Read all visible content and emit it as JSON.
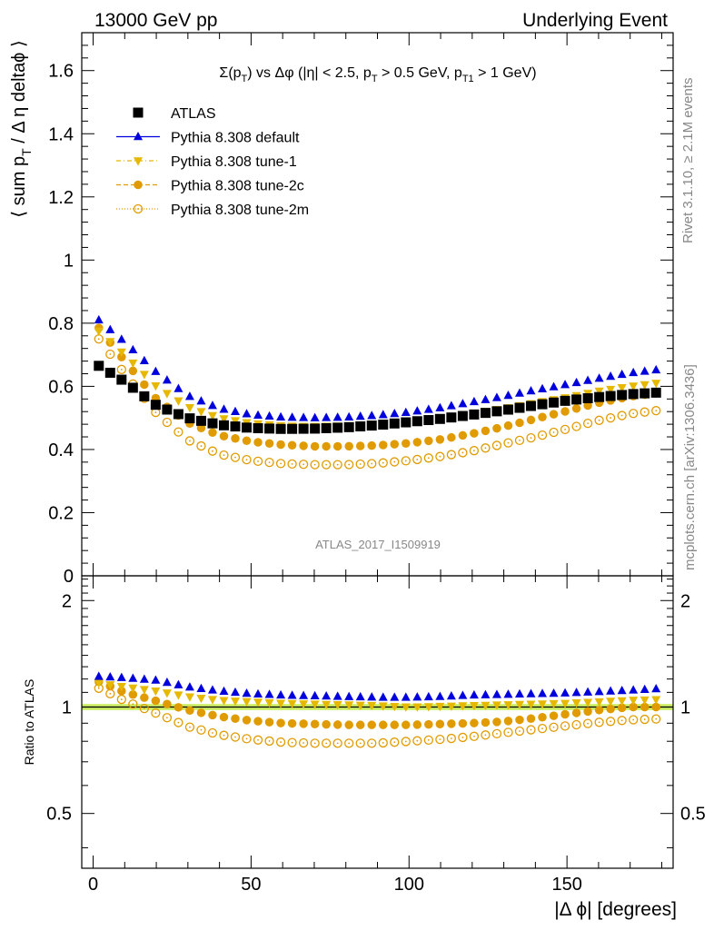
{
  "header": {
    "left": "13000 GeV pp",
    "right": "Underlying Event"
  },
  "side_text": {
    "rivet": "Rivet 3.1.10, ≥ 2.1M events",
    "mcplots": "mcplots.cern.ch [arXiv:1306.3436]"
  },
  "watermark": "ATLAS_2017_I1509919",
  "chart_data": [
    {
      "type": "scatter",
      "title": "Σ(p_T) vs Δφ (|η| < 2.5, p_T > 0.5 GeV, p_T1 > 1 GeV)",
      "title_parts": {
        "a": "Σ(p",
        "a_sub": "T",
        "b": ") vs Δφ (|η| < 2.5, p",
        "b_sub": "T",
        "c": " > 0.5 GeV, p",
        "c_sub": "T1",
        "d": " > 1 GeV)"
      },
      "ylabel": "⟨ sum p_T / Δ η deltaϕ ⟩",
      "ylabel_parts": {
        "a": "⟨ sum p",
        "sub": "T",
        "b": " / Δ η deltaϕ ⟩"
      },
      "xlim": [
        -3.6,
        183.6
      ],
      "ylim": [
        0,
        1.72
      ],
      "yticks": [
        0,
        0.2,
        0.4,
        0.6,
        0.8,
        1,
        1.2,
        1.4,
        1.6
      ],
      "ytick_labels": [
        "0",
        "0.2",
        "0.4",
        "0.6",
        "0.8",
        "1",
        "1.2",
        "1.4",
        "1.6"
      ],
      "legend_position": "top-left",
      "legend": [
        {
          "label": "ATLAS",
          "color": "#000000",
          "marker": "square"
        },
        {
          "label": "Pythia 8.308 default",
          "color": "#0000dd",
          "marker": "triangle-up"
        },
        {
          "label": "Pythia 8.308 tune-1",
          "color": "#e6b800",
          "marker": "triangle-down"
        },
        {
          "label": "Pythia 8.308 tune-2c",
          "color": "#e09b00",
          "marker": "circle"
        },
        {
          "label": "Pythia 8.308 tune-2m",
          "color": "#e09b00",
          "marker": "open-circle"
        }
      ],
      "x_start": 1.8,
      "x_step": 3.6,
      "n_points": 50,
      "series": [
        {
          "name": "ATLAS",
          "anchors": [
            [
              1.8,
              0.665
            ],
            [
              10,
              0.615
            ],
            [
              20,
              0.54
            ],
            [
              30,
              0.5
            ],
            [
              40,
              0.478
            ],
            [
              50,
              0.468
            ],
            [
              60,
              0.465
            ],
            [
              70,
              0.466
            ],
            [
              80,
              0.47
            ],
            [
              90,
              0.477
            ],
            [
              100,
              0.487
            ],
            [
              110,
              0.497
            ],
            [
              120,
              0.51
            ],
            [
              130,
              0.524
            ],
            [
              140,
              0.54
            ],
            [
              150,
              0.555
            ],
            [
              160,
              0.566
            ],
            [
              170,
              0.575
            ],
            [
              178.2,
              0.58
            ]
          ]
        },
        {
          "name": "Pythia 8.308 default",
          "anchors": [
            [
              1.8,
              0.81
            ],
            [
              10,
              0.74
            ],
            [
              20,
              0.645
            ],
            [
              30,
              0.57
            ],
            [
              40,
              0.53
            ],
            [
              50,
              0.51
            ],
            [
              60,
              0.502
            ],
            [
              70,
              0.5
            ],
            [
              80,
              0.502
            ],
            [
              90,
              0.508
            ],
            [
              100,
              0.518
            ],
            [
              110,
              0.532
            ],
            [
              120,
              0.55
            ],
            [
              130,
              0.568
            ],
            [
              140,
              0.588
            ],
            [
              150,
              0.606
            ],
            [
              160,
              0.625
            ],
            [
              170,
              0.642
            ],
            [
              178.2,
              0.652
            ]
          ]
        },
        {
          "name": "Pythia 8.308 tune-1",
          "anchors": [
            [
              1.8,
              0.775
            ],
            [
              10,
              0.7
            ],
            [
              20,
              0.6
            ],
            [
              30,
              0.535
            ],
            [
              40,
              0.5
            ],
            [
              50,
              0.483
            ],
            [
              60,
              0.475
            ],
            [
              70,
              0.473
            ],
            [
              80,
              0.475
            ],
            [
              90,
              0.48
            ],
            [
              100,
              0.488
            ],
            [
              110,
              0.5
            ],
            [
              120,
              0.515
            ],
            [
              130,
              0.53
            ],
            [
              140,
              0.548
            ],
            [
              150,
              0.565
            ],
            [
              160,
              0.585
            ],
            [
              170,
              0.6
            ],
            [
              178.2,
              0.61
            ]
          ]
        },
        {
          "name": "Pythia 8.308 tune-2c",
          "anchors": [
            [
              1.8,
              0.785
            ],
            [
              10,
              0.68
            ],
            [
              20,
              0.56
            ],
            [
              30,
              0.485
            ],
            [
              40,
              0.445
            ],
            [
              50,
              0.425
            ],
            [
              60,
              0.415
            ],
            [
              70,
              0.41
            ],
            [
              80,
              0.41
            ],
            [
              90,
              0.413
            ],
            [
              100,
              0.42
            ],
            [
              110,
              0.432
            ],
            [
              120,
              0.45
            ],
            [
              130,
              0.472
            ],
            [
              140,
              0.497
            ],
            [
              150,
              0.522
            ],
            [
              160,
              0.548
            ],
            [
              170,
              0.568
            ],
            [
              178.2,
              0.578
            ]
          ]
        },
        {
          "name": "Pythia 8.308 tune-2m",
          "anchors": [
            [
              1.8,
              0.75
            ],
            [
              10,
              0.64
            ],
            [
              20,
              0.515
            ],
            [
              30,
              0.43
            ],
            [
              40,
              0.385
            ],
            [
              50,
              0.365
            ],
            [
              60,
              0.355
            ],
            [
              70,
              0.352
            ],
            [
              80,
              0.352
            ],
            [
              90,
              0.356
            ],
            [
              100,
              0.365
            ],
            [
              110,
              0.378
            ],
            [
              120,
              0.395
            ],
            [
              130,
              0.418
            ],
            [
              140,
              0.44
            ],
            [
              150,
              0.465
            ],
            [
              160,
              0.492
            ],
            [
              170,
              0.513
            ],
            [
              178.2,
              0.523
            ]
          ]
        }
      ]
    },
    {
      "type": "scatter",
      "ylabel": "Ratio to ATLAS",
      "xlabel": "|Δ ϕ| [degrees]",
      "xlim": [
        -3.6,
        183.6
      ],
      "ylim": [
        0.35,
        2.35
      ],
      "log_y": true,
      "xticks": [
        0,
        50,
        100,
        150
      ],
      "xtick_labels": [
        "0",
        "50",
        "100",
        "150"
      ],
      "yticks": [
        0.5,
        1,
        2
      ],
      "ytick_labels": [
        "0.5",
        "1",
        "2"
      ],
      "reference_line": 1,
      "reference_band": {
        "color": "#ccee66",
        "half_width": 0.02
      },
      "series": [
        {
          "name": "Pythia 8.308 default",
          "anchors": [
            [
              1.8,
              1.22
            ],
            [
              10,
              1.21
            ],
            [
              20,
              1.19
            ],
            [
              30,
              1.14
            ],
            [
              40,
              1.11
            ],
            [
              50,
              1.09
            ],
            [
              60,
              1.08
            ],
            [
              70,
              1.075
            ],
            [
              80,
              1.07
            ],
            [
              90,
              1.065
            ],
            [
              100,
              1.065
            ],
            [
              110,
              1.07
            ],
            [
              120,
              1.08
            ],
            [
              130,
              1.085
            ],
            [
              140,
              1.09
            ],
            [
              150,
              1.095
            ],
            [
              160,
              1.105
            ],
            [
              170,
              1.115
            ],
            [
              178.2,
              1.125
            ]
          ]
        },
        {
          "name": "Pythia 8.308 tune-1",
          "anchors": [
            [
              1.8,
              1.17
            ],
            [
              10,
              1.14
            ],
            [
              20,
              1.11
            ],
            [
              30,
              1.07
            ],
            [
              40,
              1.045
            ],
            [
              50,
              1.035
            ],
            [
              60,
              1.025
            ],
            [
              70,
              1.02
            ],
            [
              80,
              1.015
            ],
            [
              90,
              1.01
            ],
            [
              100,
              1.0
            ],
            [
              110,
              1.005
            ],
            [
              120,
              1.01
            ],
            [
              130,
              1.015
            ],
            [
              140,
              1.02
            ],
            [
              150,
              1.025
            ],
            [
              160,
              1.035
            ],
            [
              170,
              1.045
            ],
            [
              178.2,
              1.05
            ]
          ]
        },
        {
          "name": "Pythia 8.308 tune-2c",
          "anchors": [
            [
              1.8,
              1.18
            ],
            [
              10,
              1.1
            ],
            [
              20,
              1.04
            ],
            [
              30,
              0.98
            ],
            [
              40,
              0.94
            ],
            [
              50,
              0.915
            ],
            [
              60,
              0.9
            ],
            [
              70,
              0.895
            ],
            [
              80,
              0.89
            ],
            [
              90,
              0.89
            ],
            [
              100,
              0.89
            ],
            [
              110,
              0.895
            ],
            [
              120,
              0.9
            ],
            [
              130,
              0.91
            ],
            [
              140,
              0.93
            ],
            [
              150,
              0.955
            ],
            [
              160,
              0.98
            ],
            [
              170,
              1.0
            ],
            [
              178.2,
              1.0
            ]
          ]
        },
        {
          "name": "Pythia 8.308 tune-2m",
          "anchors": [
            [
              1.8,
              1.13
            ],
            [
              10,
              1.04
            ],
            [
              20,
              0.96
            ],
            [
              30,
              0.88
            ],
            [
              40,
              0.835
            ],
            [
              50,
              0.81
            ],
            [
              60,
              0.795
            ],
            [
              70,
              0.79
            ],
            [
              80,
              0.79
            ],
            [
              90,
              0.79
            ],
            [
              100,
              0.8
            ],
            [
              110,
              0.81
            ],
            [
              120,
              0.825
            ],
            [
              130,
              0.845
            ],
            [
              140,
              0.865
            ],
            [
              150,
              0.885
            ],
            [
              160,
              0.905
            ],
            [
              170,
              0.92
            ],
            [
              178.2,
              0.925
            ]
          ]
        }
      ]
    }
  ]
}
